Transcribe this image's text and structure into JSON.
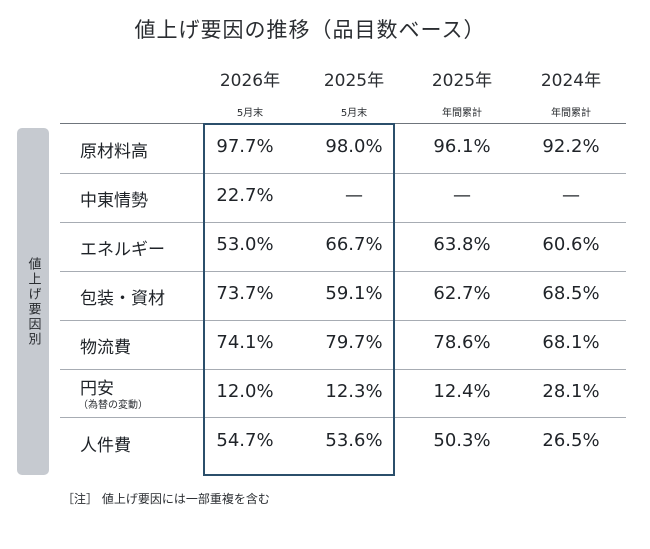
{
  "chart_data": {
    "type": "table",
    "title": "値上げ要因の推移（品目数ベース）",
    "side_label": "値上げ要因別",
    "columns": [
      {
        "year": "2026年",
        "sub": "5月末"
      },
      {
        "year": "2025年",
        "sub": "5月末"
      },
      {
        "year": "2025年",
        "sub": "年間累計"
      },
      {
        "year": "2024年",
        "sub": "年間累計"
      }
    ],
    "rows": [
      {
        "category": "原材料高",
        "sub": "",
        "values": [
          "97.7%",
          "98.0%",
          "96.1%",
          "92.2%"
        ]
      },
      {
        "category": "中東情勢",
        "sub": "",
        "values": [
          "22.7%",
          "—",
          "—",
          "—"
        ]
      },
      {
        "category": "エネルギー",
        "sub": "",
        "values": [
          "53.0%",
          "66.7%",
          "63.8%",
          "60.6%"
        ]
      },
      {
        "category": "包装・資材",
        "sub": "",
        "values": [
          "73.7%",
          "59.1%",
          "62.7%",
          "68.5%"
        ]
      },
      {
        "category": "物流費",
        "sub": "",
        "values": [
          "74.1%",
          "79.7%",
          "78.6%",
          "68.1%"
        ]
      },
      {
        "category": "円安",
        "sub": "（為替の変動）",
        "values": [
          "12.0%",
          "12.3%",
          "12.4%",
          "28.1%"
        ]
      },
      {
        "category": "人件費",
        "sub": "",
        "values": [
          "54.7%",
          "53.6%",
          "50.3%",
          "26.5%"
        ]
      }
    ],
    "highlighted_columns": [
      0,
      1
    ],
    "note": "［注］ 値上げ要因には一部重複を含む"
  },
  "colors": {
    "highlight_border": "#2b4f6b",
    "side_label_bg": "#c6cad0",
    "rule_line": "#a7acb3"
  }
}
